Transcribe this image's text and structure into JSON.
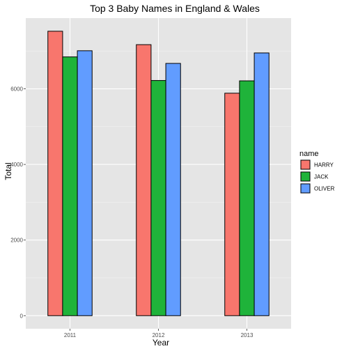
{
  "chart_data": {
    "type": "bar",
    "title": "Top 3 Baby Names in England & Wales",
    "xlabel": "Year",
    "ylabel": "Total",
    "categories": [
      "2011",
      "2012",
      "2013"
    ],
    "series": [
      {
        "name": "HARRY",
        "color": "#F8766D",
        "values": [
          7523,
          7168,
          5884
        ]
      },
      {
        "name": "JACK",
        "color": "#1FB33A",
        "values": [
          6844,
          6220,
          6211
        ]
      },
      {
        "name": "OLIVER",
        "color": "#619CFF",
        "values": [
          7007,
          6672,
          6949
        ]
      }
    ],
    "ylim": [
      -345,
      7870
    ],
    "yticks": [
      0,
      2000,
      4000,
      6000
    ],
    "ytick_labels": [
      "0",
      "2000",
      "4000",
      "6000"
    ],
    "grid": true,
    "background": "#E5E5E5",
    "legend": {
      "title": "name",
      "position": "right"
    }
  }
}
